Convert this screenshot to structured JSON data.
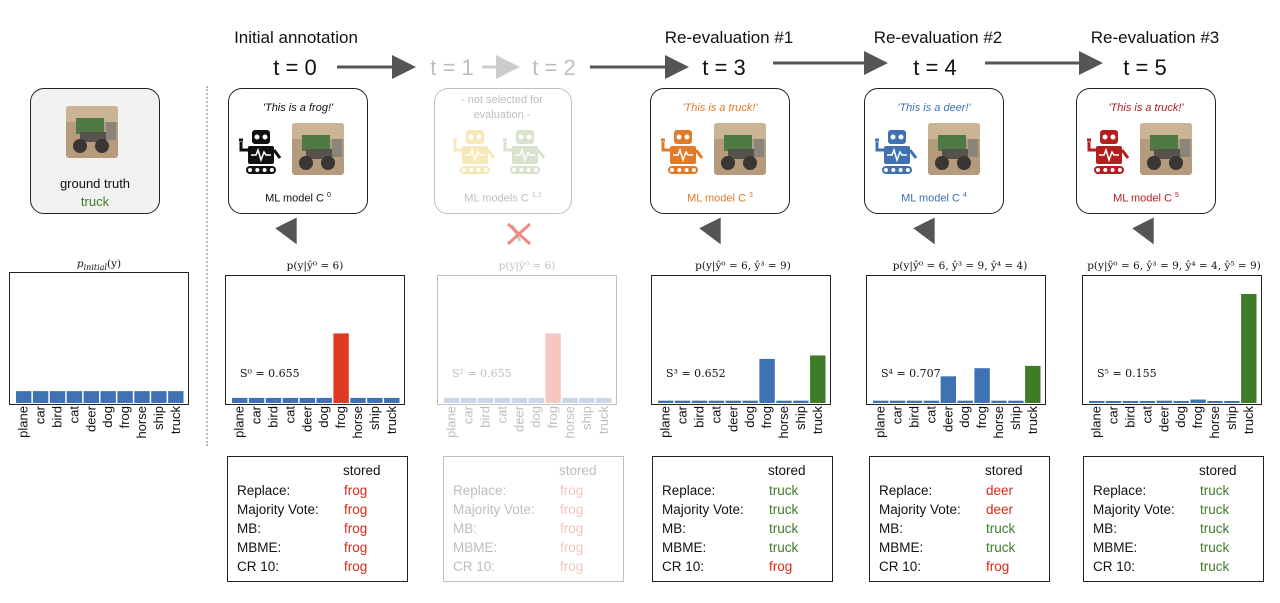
{
  "colors": {
    "bar_blue": "#3f72b3",
    "highlight_red": "#e03a24",
    "truck_green": "#3f7c2a",
    "label_green": "#3f7c2a",
    "label_red": "#d62b16",
    "orange": "#e07b2a",
    "blue_text": "#3f72b3",
    "dark_red": "#b31f1f"
  },
  "icons": [
    "robot-icon",
    "truck-image",
    "cross-icon",
    "arrow-right",
    "arrow-down"
  ],
  "ground_truth": {
    "label": "ground truth",
    "class": "truck"
  },
  "initial_prior": {
    "formula": "p_initial(y)",
    "formula_main": "p",
    "formula_sub": "initial",
    "formula_rest": "(y)"
  },
  "stages": [
    {
      "title": "Initial annotation",
      "time": "t = 0",
      "quote": "'This is a frog!'",
      "model": "ML model C",
      "model_sup": "0",
      "formula": "p(y|ŷ⁰ = 6)",
      "score": "S⁰ = 0.655",
      "table": {
        "header": "stored",
        "rows": [
          {
            "label": "Replace:",
            "value": "frog"
          },
          {
            "label": "Majority Vote:",
            "value": "frog"
          },
          {
            "label": "MB:",
            "value": "frog"
          },
          {
            "label": "MBME:",
            "value": "frog"
          },
          {
            "label": "CR 10:",
            "value": "frog"
          }
        ]
      }
    },
    {
      "title": "",
      "time_a": "t = 1",
      "time_b": "t = 2",
      "note": "- not selected for evaluation -",
      "model": "ML models C",
      "model_sup": "1,2",
      "formula": "p(y|ŷ⁰ = 6)",
      "score": "S² = 0.655",
      "table": {
        "header": "stored",
        "rows": [
          {
            "label": "Replace:",
            "value": "frog"
          },
          {
            "label": "Majority Vote:",
            "value": "frog"
          },
          {
            "label": "MB:",
            "value": "frog"
          },
          {
            "label": "MBME:",
            "value": "frog"
          },
          {
            "label": "CR 10:",
            "value": "frog"
          }
        ]
      }
    },
    {
      "title": "Re-evaluation #1",
      "time": "t = 3",
      "quote": "'This is a truck!'",
      "model": "ML model C",
      "model_sup": "3",
      "formula": "p(y|ŷ⁰ = 6, ŷ³ = 9)",
      "score": "S³ = 0.652",
      "table": {
        "header": "stored",
        "rows": [
          {
            "label": "Replace:",
            "value": "truck"
          },
          {
            "label": "Majority Vote:",
            "value": "truck"
          },
          {
            "label": "MB:",
            "value": "truck"
          },
          {
            "label": "MBME:",
            "value": "truck"
          },
          {
            "label": "CR 10:",
            "value": "frog"
          }
        ]
      }
    },
    {
      "title": "Re-evaluation #2",
      "time": "t = 4",
      "quote": "'This is a deer!'",
      "model": "ML model C",
      "model_sup": "4",
      "formula": "p(y|ŷ⁰ = 6, ŷ³ = 9, ŷ⁴ = 4)",
      "score": "S⁴ = 0.707",
      "table": {
        "header": "stored",
        "rows": [
          {
            "label": "Replace:",
            "value": "deer"
          },
          {
            "label": "Majority Vote:",
            "value": "deer"
          },
          {
            "label": "MB:",
            "value": "truck"
          },
          {
            "label": "MBME:",
            "value": "truck"
          },
          {
            "label": "CR 10:",
            "value": "frog"
          }
        ]
      }
    },
    {
      "title": "Re-evaluation #3",
      "time": "t = 5",
      "quote": "'This is a truck!'",
      "model": "ML model C",
      "model_sup": "5",
      "formula": "p(y|ŷ⁰ = 6, ŷ³ = 9, ŷ⁴ = 4, ŷ⁵ = 9)",
      "score": "S⁵ = 0.155",
      "table": {
        "header": "stored",
        "rows": [
          {
            "label": "Replace:",
            "value": "truck"
          },
          {
            "label": "Majority Vote:",
            "value": "truck"
          },
          {
            "label": "MB:",
            "value": "truck"
          },
          {
            "label": "MBME:",
            "value": "truck"
          },
          {
            "label": "CR 10:",
            "value": "truck"
          }
        ]
      }
    }
  ],
  "chart_data": [
    {
      "type": "bar",
      "categories": [
        "plane",
        "car",
        "bird",
        "cat",
        "deer",
        "dog",
        "frog",
        "horse",
        "ship",
        "truck"
      ],
      "values": [
        0.1,
        0.1,
        0.1,
        0.1,
        0.1,
        0.1,
        0.1,
        0.1,
        0.1,
        0.1
      ],
      "ylim": [
        0,
        1
      ]
    },
    {
      "type": "bar",
      "categories": [
        "plane",
        "car",
        "bird",
        "cat",
        "deer",
        "dog",
        "frog",
        "horse",
        "ship",
        "truck"
      ],
      "values": [
        0.044,
        0.044,
        0.044,
        0.044,
        0.044,
        0.044,
        0.6,
        0.044,
        0.044,
        0.044
      ],
      "ylim": [
        0,
        1
      ]
    },
    {
      "type": "bar",
      "categories": [
        "plane",
        "car",
        "bird",
        "cat",
        "deer",
        "dog",
        "frog",
        "horse",
        "ship",
        "truck"
      ],
      "values": [
        0.044,
        0.044,
        0.044,
        0.044,
        0.044,
        0.044,
        0.6,
        0.044,
        0.044,
        0.044
      ],
      "ylim": [
        0,
        1
      ]
    },
    {
      "type": "bar",
      "categories": [
        "plane",
        "car",
        "bird",
        "cat",
        "deer",
        "dog",
        "frog",
        "horse",
        "ship",
        "truck"
      ],
      "values": [
        0.02,
        0.02,
        0.02,
        0.02,
        0.02,
        0.02,
        0.38,
        0.02,
        0.02,
        0.41
      ],
      "ylim": [
        0,
        1
      ]
    },
    {
      "type": "bar",
      "categories": [
        "plane",
        "car",
        "bird",
        "cat",
        "deer",
        "dog",
        "frog",
        "horse",
        "ship",
        "truck"
      ],
      "values": [
        0.02,
        0.02,
        0.02,
        0.02,
        0.23,
        0.02,
        0.3,
        0.02,
        0.02,
        0.32
      ],
      "ylim": [
        0,
        1
      ]
    },
    {
      "type": "bar",
      "categories": [
        "plane",
        "car",
        "bird",
        "cat",
        "deer",
        "dog",
        "frog",
        "horse",
        "ship",
        "truck"
      ],
      "values": [
        0.002,
        0.002,
        0.002,
        0.002,
        0.02,
        0.002,
        0.03,
        0.002,
        0.002,
        0.94
      ],
      "ylim": [
        0,
        1
      ]
    }
  ]
}
